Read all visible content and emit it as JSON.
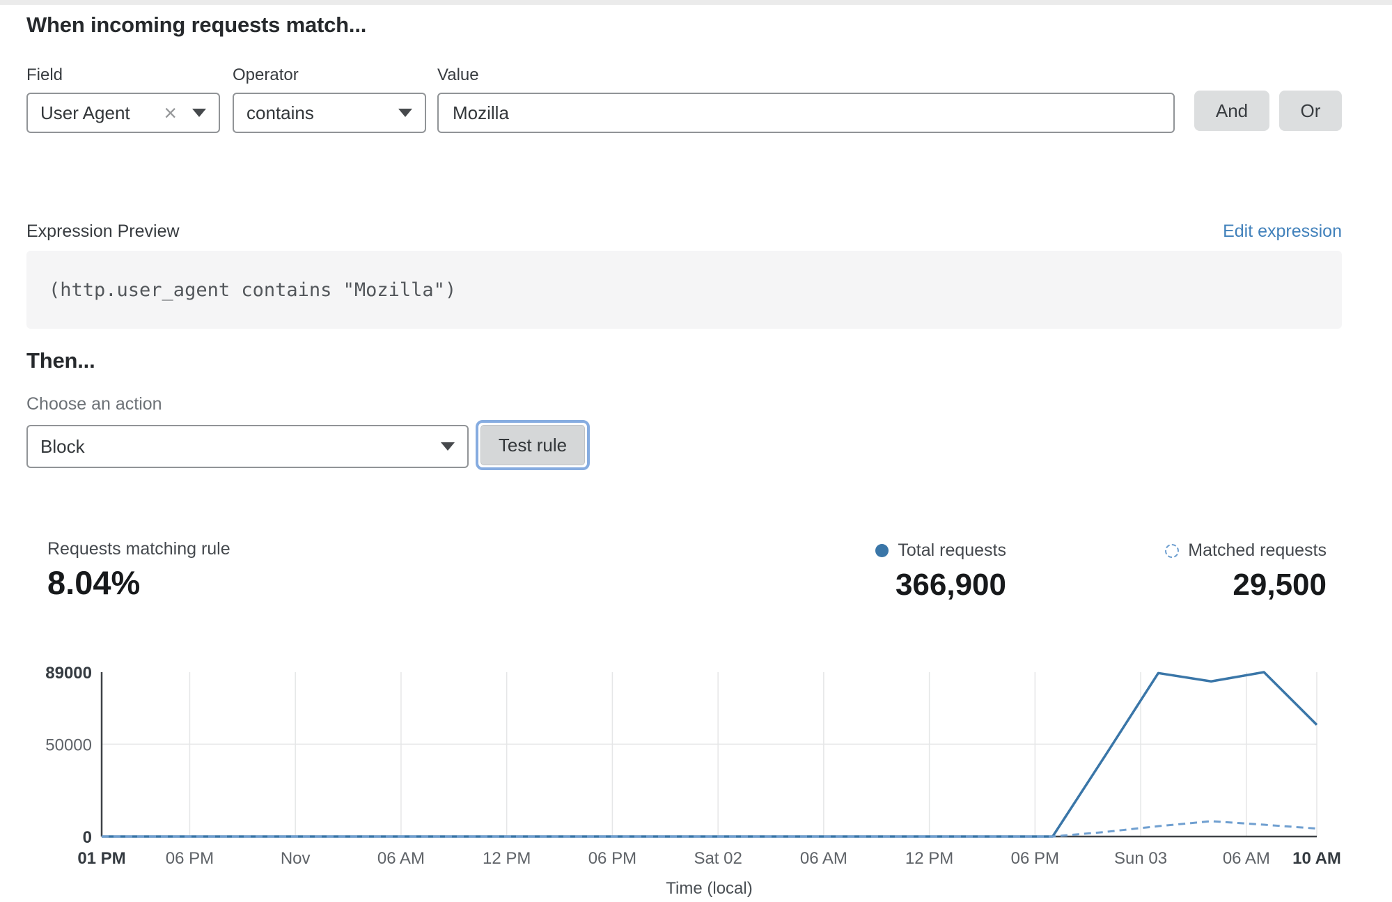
{
  "header": {
    "title": "When incoming requests match..."
  },
  "rule_builder": {
    "field": {
      "label": "Field",
      "value": "User Agent"
    },
    "operator": {
      "label": "Operator",
      "value": "contains"
    },
    "value": {
      "label": "Value",
      "value": "Mozilla"
    },
    "and_label": "And",
    "or_label": "Or",
    "clear_glyph": "×"
  },
  "expression": {
    "label": "Expression Preview",
    "edit_link": "Edit expression",
    "code": "(http.user_agent contains \"Mozilla\")"
  },
  "action": {
    "heading": "Then...",
    "choose_label": "Choose an action",
    "selected": "Block",
    "test_button": "Test rule"
  },
  "stats": {
    "matching": {
      "label": "Requests matching rule",
      "value": "8.04%"
    },
    "total": {
      "label": "Total requests",
      "value": "366,900",
      "icon": "filled-circle"
    },
    "matched": {
      "label": "Matched requests",
      "value": "29,500",
      "icon": "dashed-circle"
    }
  },
  "colors": {
    "link_blue": "#4181bb",
    "total_blue": "#3a76a8",
    "matched_blue": "#6f9fd0",
    "button_gray": "#dcdedf",
    "focus_ring": "#86ace0"
  },
  "chart_data": {
    "type": "line",
    "xlabel": "Time (local)",
    "ylim": [
      0,
      89000
    ],
    "x_hours_total": 69,
    "grid": true,
    "grid_color": "#e5e6e7",
    "axis_color": "#3f4347",
    "y_ticks": [
      {
        "value": 0,
        "label": "0",
        "bold": true
      },
      {
        "value": 50000,
        "label": "50000",
        "bold": false,
        "grid": true
      },
      {
        "value": 89000,
        "label": "89000",
        "bold": true
      }
    ],
    "x_ticks": [
      {
        "h": 0,
        "label": "01 PM",
        "bold": true
      },
      {
        "h": 5,
        "label": "06 PM"
      },
      {
        "h": 11,
        "label": "Nov"
      },
      {
        "h": 17,
        "label": "06 AM"
      },
      {
        "h": 23,
        "label": "12 PM"
      },
      {
        "h": 29,
        "label": "06 PM"
      },
      {
        "h": 35,
        "label": "Sat 02"
      },
      {
        "h": 41,
        "label": "06 AM"
      },
      {
        "h": 47,
        "label": "12 PM"
      },
      {
        "h": 53,
        "label": "06 PM"
      },
      {
        "h": 59,
        "label": "Sun 03"
      },
      {
        "h": 65,
        "label": "06 AM"
      },
      {
        "h": 69,
        "label": "10 AM",
        "bold": true
      }
    ],
    "series": [
      {
        "name": "Total requests",
        "style": "solid",
        "color": "#3a76a8",
        "width": 3.5,
        "points": [
          [
            0,
            0
          ],
          [
            3,
            0
          ],
          [
            6,
            0
          ],
          [
            9,
            0
          ],
          [
            12,
            0
          ],
          [
            15,
            0
          ],
          [
            18,
            0
          ],
          [
            21,
            0
          ],
          [
            24,
            0
          ],
          [
            27,
            0
          ],
          [
            30,
            0
          ],
          [
            33,
            0
          ],
          [
            36,
            0
          ],
          [
            39,
            0
          ],
          [
            42,
            0
          ],
          [
            45,
            0
          ],
          [
            48,
            0
          ],
          [
            51,
            0
          ],
          [
            54,
            0
          ],
          [
            57,
            44000
          ],
          [
            60,
            88500
          ],
          [
            63,
            84000
          ],
          [
            66,
            89000
          ],
          [
            69,
            60500
          ]
        ]
      },
      {
        "name": "Matched requests",
        "style": "dashed",
        "color": "#6f9fd0",
        "width": 3,
        "points": [
          [
            0,
            0
          ],
          [
            3,
            0
          ],
          [
            6,
            0
          ],
          [
            9,
            0
          ],
          [
            12,
            0
          ],
          [
            15,
            0
          ],
          [
            18,
            0
          ],
          [
            21,
            0
          ],
          [
            24,
            0
          ],
          [
            27,
            0
          ],
          [
            30,
            0
          ],
          [
            33,
            0
          ],
          [
            36,
            0
          ],
          [
            39,
            0
          ],
          [
            42,
            0
          ],
          [
            45,
            0
          ],
          [
            48,
            0
          ],
          [
            51,
            0
          ],
          [
            54,
            0
          ],
          [
            57,
            2500
          ],
          [
            60,
            5600
          ],
          [
            63,
            8300
          ],
          [
            66,
            6400
          ],
          [
            69,
            4300
          ]
        ]
      }
    ],
    "legend_position": "top-right"
  }
}
